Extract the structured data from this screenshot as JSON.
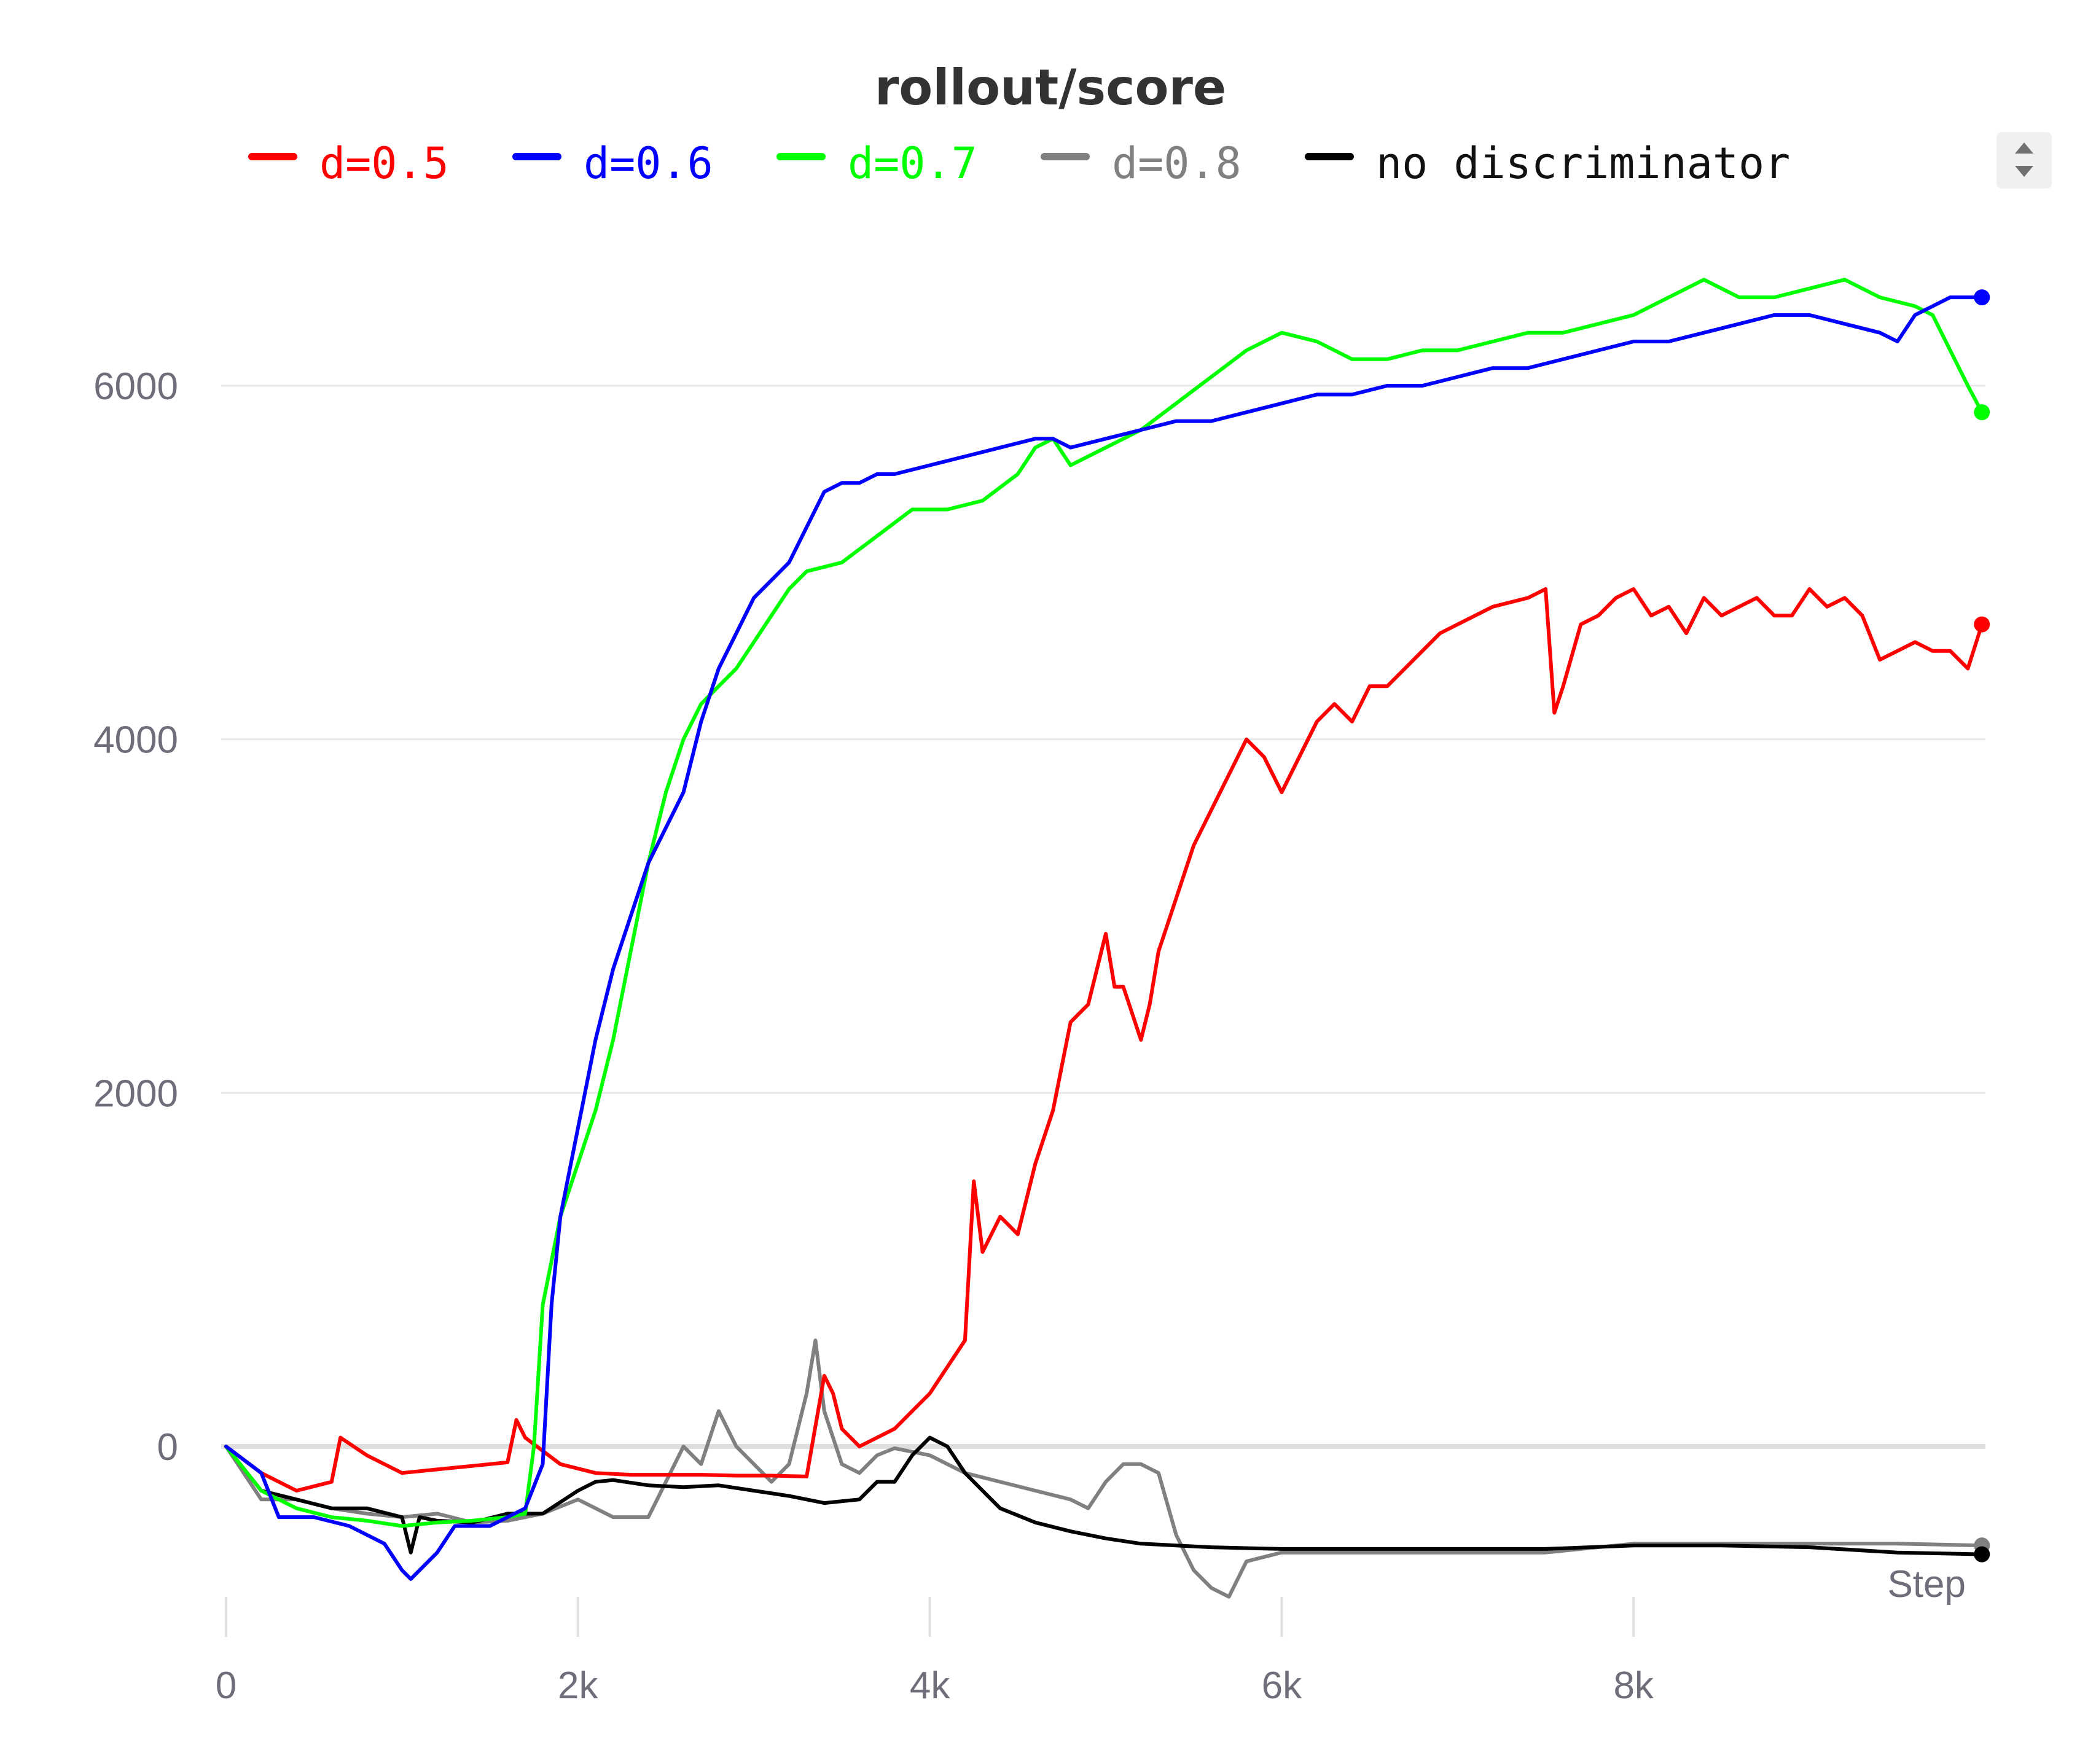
{
  "chart_data": {
    "type": "line",
    "title": "rollout/score",
    "xlabel": "Step",
    "ylabel": "",
    "xlim": [
      0,
      10000
    ],
    "ylim": [
      -1100,
      7000
    ],
    "x_ticks": [
      {
        "value": 0,
        "label": "0"
      },
      {
        "value": 2000,
        "label": "2k"
      },
      {
        "value": 4000,
        "label": "4k"
      },
      {
        "value": 6000,
        "label": "6k"
      },
      {
        "value": 8000,
        "label": "8k"
      }
    ],
    "y_ticks": [
      {
        "value": 0,
        "label": "0"
      },
      {
        "value": 2000,
        "label": "2000"
      },
      {
        "value": 4000,
        "label": "4000"
      },
      {
        "value": 6000,
        "label": "6000"
      }
    ],
    "grid": true,
    "legend_position": "top",
    "series": [
      {
        "name": "d=0.5",
        "color": "#ff0000",
        "x": [
          0,
          200,
          400,
          600,
          650,
          800,
          1000,
          1200,
          1400,
          1600,
          1650,
          1700,
          1900,
          2100,
          2300,
          2500,
          2700,
          2900,
          3100,
          3300,
          3400,
          3450,
          3500,
          3600,
          3700,
          3800,
          3900,
          4000,
          4100,
          4200,
          4250,
          4300,
          4400,
          4500,
          4600,
          4700,
          4800,
          4900,
          5000,
          5050,
          5100,
          5200,
          5250,
          5300,
          5400,
          5500,
          5600,
          5700,
          5800,
          5900,
          6000,
          6100,
          6200,
          6300,
          6400,
          6500,
          6600,
          6700,
          6800,
          6900,
          7000,
          7200,
          7400,
          7500,
          7550,
          7600,
          7700,
          7800,
          7900,
          8000,
          8100,
          8200,
          8300,
          8400,
          8500,
          8600,
          8700,
          8800,
          8900,
          9000,
          9100,
          9200,
          9300,
          9400,
          9500,
          9600,
          9700,
          9800,
          9900,
          9980
        ],
        "y": [
          0,
          -150,
          -250,
          -200,
          50,
          -50,
          -150,
          -130,
          -110,
          -90,
          150,
          50,
          -100,
          -150,
          -160,
          -160,
          -160,
          -165,
          -165,
          -170,
          400,
          300,
          100,
          0,
          50,
          100,
          200,
          300,
          450,
          600,
          1500,
          1100,
          1300,
          1200,
          1600,
          1900,
          2400,
          2500,
          2900,
          2600,
          2600,
          2300,
          2500,
          2800,
          3100,
          3400,
          3600,
          3800,
          4000,
          3900,
          3700,
          3900,
          4100,
          4200,
          4100,
          4300,
          4300,
          4400,
          4500,
          4600,
          4650,
          4750,
          4800,
          4850,
          4150,
          4300,
          4650,
          4700,
          4800,
          4850,
          4700,
          4750,
          4600,
          4800,
          4700,
          4750,
          4800,
          4700,
          4700,
          4850,
          4750,
          4800,
          4700,
          4450,
          4500,
          4550,
          4500,
          4500,
          4400,
          4650
        ]
      },
      {
        "name": "d=0.6",
        "color": "#0000ff",
        "x": [
          0,
          200,
          300,
          500,
          700,
          900,
          1000,
          1050,
          1100,
          1200,
          1300,
          1500,
          1700,
          1800,
          1850,
          1900,
          2000,
          2100,
          2200,
          2300,
          2400,
          2500,
          2600,
          2700,
          2800,
          2900,
          3000,
          3100,
          3200,
          3300,
          3400,
          3500,
          3600,
          3700,
          3800,
          4000,
          4200,
          4400,
          4600,
          4700,
          4800,
          5000,
          5200,
          5400,
          5600,
          5800,
          6000,
          6200,
          6400,
          6600,
          6800,
          7000,
          7200,
          7400,
          7600,
          7800,
          8000,
          8200,
          8400,
          8600,
          8800,
          9000,
          9200,
          9400,
          9500,
          9600,
          9700,
          9800,
          9900,
          9980
        ],
        "y": [
          0,
          -150,
          -400,
          -400,
          -450,
          -550,
          -700,
          -750,
          -700,
          -600,
          -450,
          -450,
          -350,
          -100,
          800,
          1300,
          1800,
          2300,
          2700,
          3000,
          3300,
          3500,
          3700,
          4100,
          4400,
          4600,
          4800,
          4900,
          5000,
          5200,
          5400,
          5450,
          5450,
          5500,
          5500,
          5550,
          5600,
          5650,
          5700,
          5700,
          5650,
          5700,
          5750,
          5800,
          5800,
          5850,
          5900,
          5950,
          5950,
          6000,
          6000,
          6050,
          6100,
          6100,
          6150,
          6200,
          6250,
          6250,
          6300,
          6350,
          6400,
          6400,
          6350,
          6300,
          6250,
          6400,
          6450,
          6500,
          6500,
          6500
        ]
      },
      {
        "name": "d=0.7",
        "color": "#00ff00",
        "x": [
          0,
          200,
          400,
          600,
          800,
          1000,
          1200,
          1400,
          1600,
          1700,
          1750,
          1800,
          1900,
          2000,
          2100,
          2200,
          2300,
          2400,
          2500,
          2600,
          2700,
          2800,
          2900,
          3000,
          3100,
          3200,
          3300,
          3500,
          3700,
          3900,
          4100,
          4300,
          4500,
          4600,
          4700,
          4800,
          5000,
          5200,
          5400,
          5600,
          5800,
          6000,
          6200,
          6400,
          6600,
          6800,
          7000,
          7200,
          7400,
          7600,
          7800,
          8000,
          8200,
          8400,
          8500,
          8600,
          8800,
          9000,
          9200,
          9400,
          9600,
          9700,
          9800,
          9900,
          9980
        ],
        "y": [
          0,
          -250,
          -350,
          -400,
          -420,
          -450,
          -430,
          -420,
          -400,
          -380,
          0,
          800,
          1300,
          1600,
          1900,
          2300,
          2800,
          3300,
          3700,
          4000,
          4200,
          4300,
          4400,
          4550,
          4700,
          4850,
          4950,
          5000,
          5150,
          5300,
          5300,
          5350,
          5500,
          5650,
          5700,
          5550,
          5650,
          5750,
          5900,
          6050,
          6200,
          6300,
          6250,
          6150,
          6150,
          6200,
          6200,
          6250,
          6300,
          6300,
          6350,
          6400,
          6500,
          6600,
          6550,
          6500,
          6500,
          6550,
          6600,
          6500,
          6450,
          6400,
          6200,
          6000,
          5850
        ]
      },
      {
        "name": "d=0.8",
        "color": "#808080",
        "x": [
          0,
          200,
          400,
          600,
          800,
          1000,
          1200,
          1400,
          1600,
          1800,
          2000,
          2200,
          2400,
          2500,
          2600,
          2700,
          2800,
          2900,
          3000,
          3100,
          3200,
          3300,
          3350,
          3400,
          3500,
          3600,
          3700,
          3800,
          4000,
          4100,
          4200,
          4400,
          4600,
          4800,
          4900,
          5000,
          5100,
          5200,
          5300,
          5400,
          5500,
          5600,
          5700,
          5800,
          6000,
          6500,
          7000,
          7500,
          8000,
          8500,
          9000,
          9500,
          9980
        ],
        "y": [
          0,
          -300,
          -300,
          -350,
          -380,
          -400,
          -380,
          -430,
          -420,
          -380,
          -300,
          -400,
          -400,
          -200,
          0,
          -100,
          200,
          0,
          -100,
          -200,
          -100,
          300,
          600,
          200,
          -100,
          -150,
          -50,
          -10,
          -50,
          -100,
          -150,
          -200,
          -250,
          -300,
          -350,
          -200,
          -100,
          -100,
          -150,
          -500,
          -700,
          -800,
          -850,
          -650,
          -600,
          -600,
          -600,
          -600,
          -550,
          -550,
          -550,
          -550,
          -560
        ]
      },
      {
        "name": "no discriminator",
        "color": "#000000",
        "x": [
          0,
          200,
          400,
          600,
          800,
          1000,
          1050,
          1100,
          1200,
          1400,
          1600,
          1800,
          2000,
          2100,
          2200,
          2400,
          2600,
          2800,
          3000,
          3200,
          3400,
          3600,
          3700,
          3800,
          3900,
          4000,
          4100,
          4200,
          4300,
          4400,
          4600,
          4800,
          5000,
          5200,
          5400,
          5600,
          6000,
          6500,
          7000,
          7500,
          8000,
          8500,
          9000,
          9500,
          9980
        ],
        "y": [
          0,
          -250,
          -300,
          -350,
          -350,
          -400,
          -600,
          -400,
          -420,
          -430,
          -380,
          -380,
          -250,
          -200,
          -190,
          -220,
          -230,
          -220,
          -250,
          -280,
          -320,
          -300,
          -200,
          -200,
          -50,
          50,
          0,
          -150,
          -250,
          -350,
          -430,
          -480,
          -520,
          -550,
          -560,
          -570,
          -580,
          -580,
          -580,
          -580,
          -560,
          -560,
          -570,
          -600,
          -610
        ]
      }
    ]
  }
}
